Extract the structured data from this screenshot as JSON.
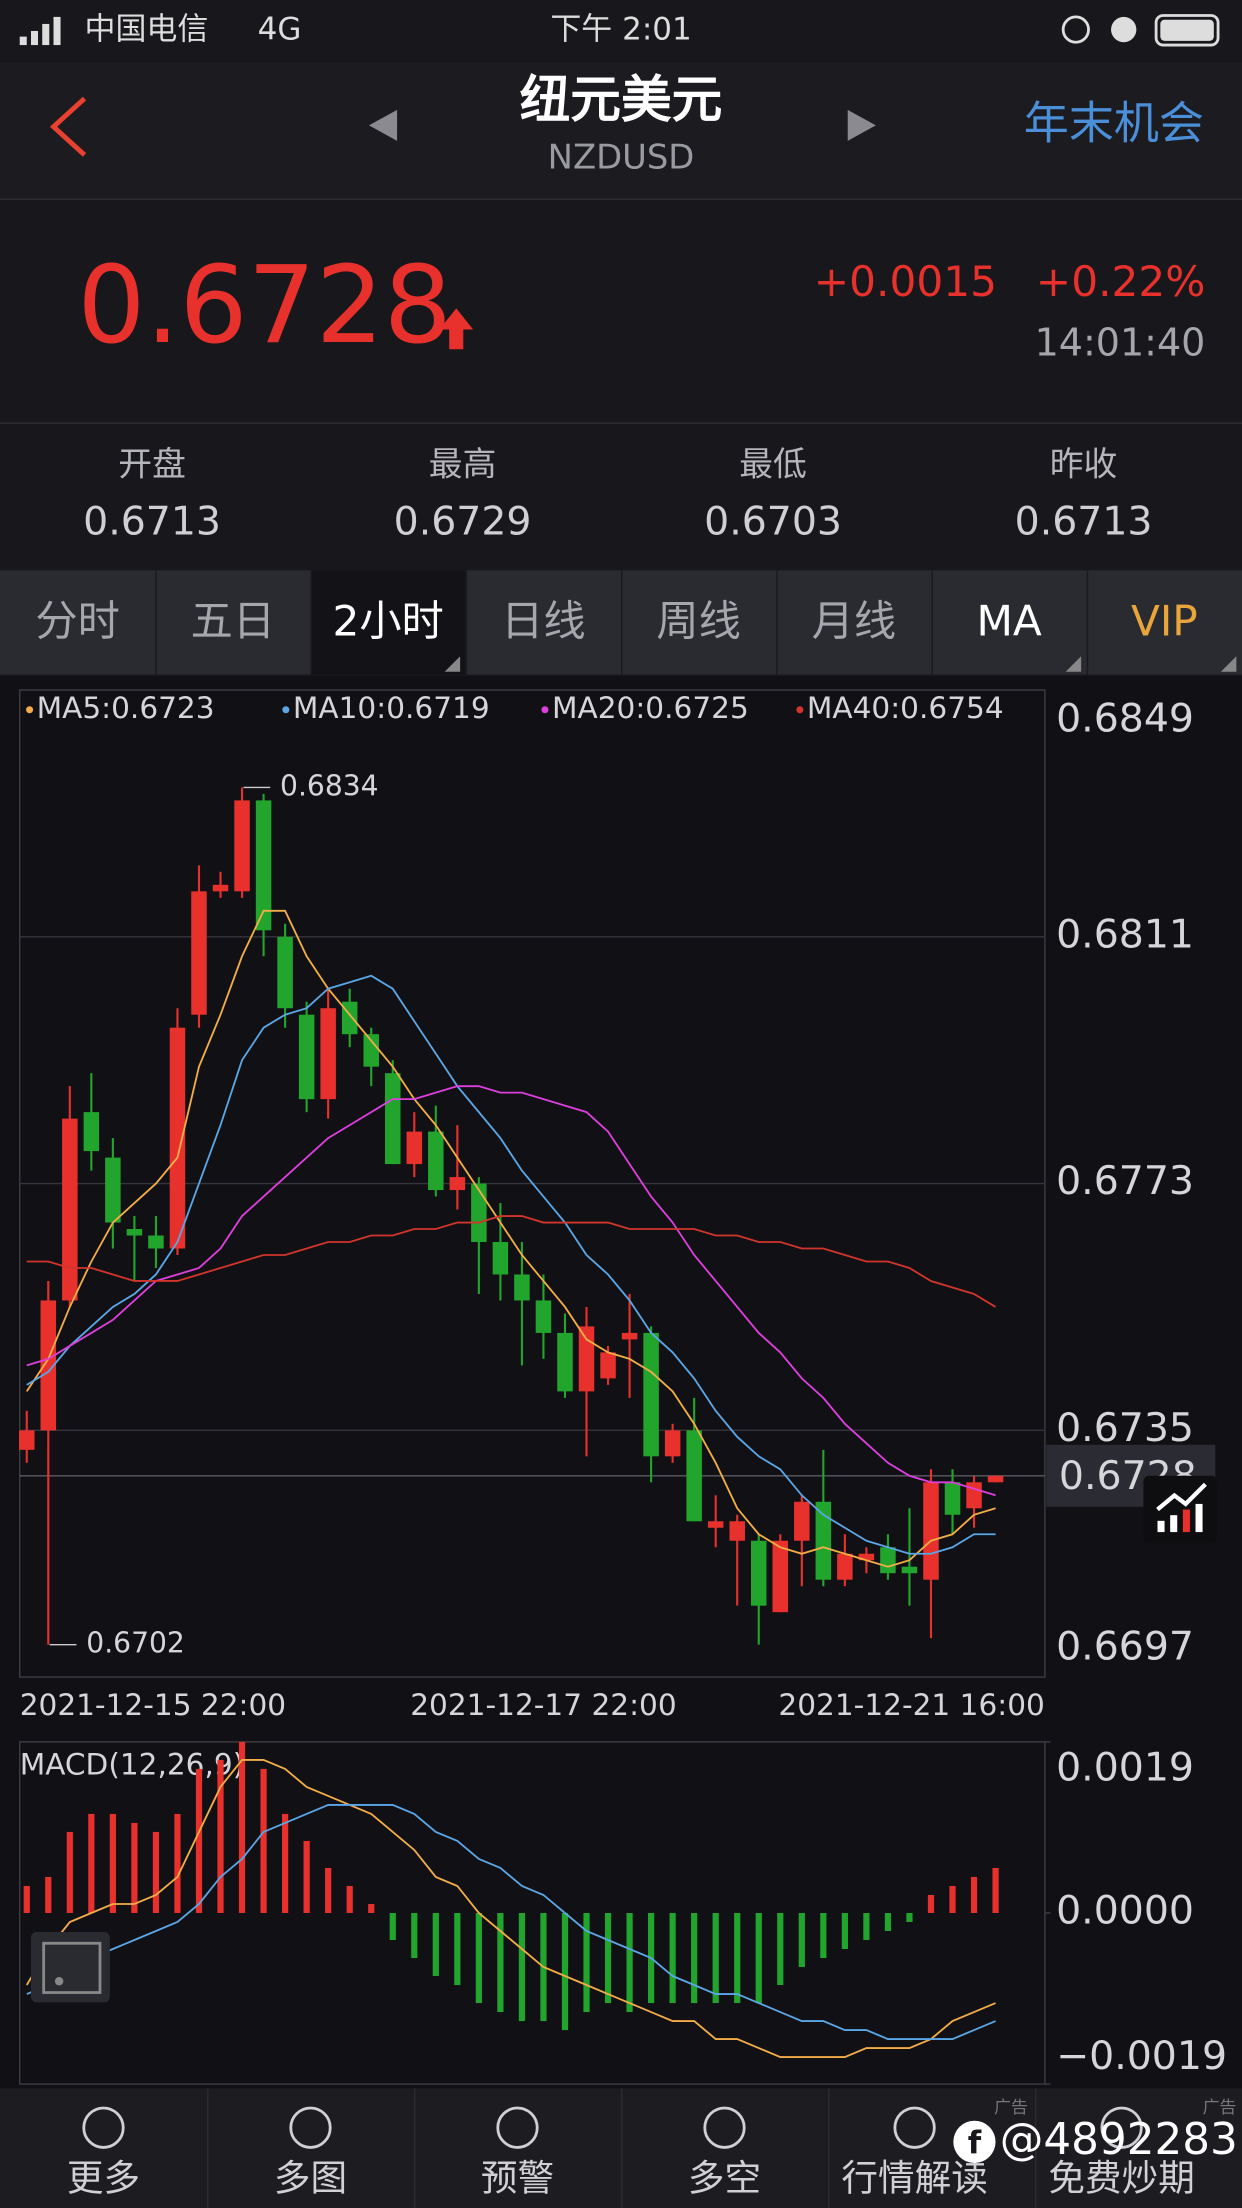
{
  "status": {
    "carrier": "中国电信",
    "network": "4G",
    "time": "下午 2:01"
  },
  "header": {
    "title": "纽元美元",
    "symbol": "NZDUSD",
    "promo": "年末机会"
  },
  "quote": {
    "price": "0.6728",
    "change": "+0.0015",
    "change_pct": "+0.22%",
    "time": "14:01:40"
  },
  "stats": [
    {
      "label": "开盘",
      "value": "0.6713"
    },
    {
      "label": "最高",
      "value": "0.6729"
    },
    {
      "label": "最低",
      "value": "0.6703"
    },
    {
      "label": "昨收",
      "value": "0.6713"
    }
  ],
  "tabs": [
    "分时",
    "五日",
    "2小时",
    "日线",
    "周线",
    "月线",
    "MA",
    "VIP"
  ],
  "chart_data": [
    {
      "type": "candlestick",
      "categories": [
        "2021-12-15 22:00",
        null,
        null,
        null,
        null,
        null,
        null,
        null,
        null,
        null,
        null,
        null,
        null,
        null,
        null,
        null,
        null,
        null,
        null,
        null,
        null,
        null,
        null,
        null,
        "2021-12-17 22:00",
        null,
        null,
        null,
        null,
        null,
        null,
        null,
        null,
        null,
        null,
        null,
        null,
        null,
        null,
        null,
        null,
        null,
        null,
        null,
        null,
        "2021-12-21 16:00"
      ],
      "open": [
        0.6732,
        0.6735,
        0.6755,
        0.6784,
        0.6777,
        0.6766,
        0.6765,
        0.6763,
        0.6799,
        0.6818,
        0.6818,
        0.6832,
        0.6811,
        0.6799,
        0.6786,
        0.6801,
        0.6796,
        0.679,
        0.6776,
        0.6781,
        0.6772,
        0.6773,
        0.6764,
        0.6759,
        0.6755,
        0.675,
        0.6741,
        0.6743,
        0.6749,
        0.675,
        0.6731,
        0.6735,
        0.672,
        0.6718,
        0.6718,
        0.6707,
        0.6718,
        0.6724,
        0.6712,
        0.6715,
        0.6717,
        0.6714,
        0.6712,
        0.6727,
        0.6723,
        0.6727
      ],
      "high": [
        0.6738,
        0.6758,
        0.6788,
        0.679,
        0.678,
        0.6768,
        0.6768,
        0.68,
        0.6822,
        0.6821,
        0.6834,
        0.6833,
        0.6813,
        0.6801,
        0.6803,
        0.6803,
        0.6797,
        0.6792,
        0.6784,
        0.6785,
        0.6782,
        0.6774,
        0.677,
        0.6764,
        0.6759,
        0.6753,
        0.6754,
        0.6748,
        0.6756,
        0.6751,
        0.6736,
        0.674,
        0.6725,
        0.6722,
        0.6719,
        0.6719,
        0.6725,
        0.6732,
        0.6719,
        0.6717,
        0.6719,
        0.6723,
        0.6729,
        0.6729,
        0.6728,
        0.6728
      ],
      "low": [
        0.673,
        0.6702,
        0.6754,
        0.6775,
        0.6763,
        0.6758,
        0.676,
        0.6762,
        0.6797,
        0.6817,
        0.6817,
        0.6808,
        0.6797,
        0.6784,
        0.6783,
        0.6794,
        0.6788,
        0.6776,
        0.6774,
        0.6771,
        0.6769,
        0.6756,
        0.6755,
        0.6745,
        0.6746,
        0.674,
        0.6731,
        0.6742,
        0.674,
        0.6727,
        0.673,
        0.6721,
        0.6717,
        0.6708,
        0.6702,
        0.6707,
        0.6711,
        0.6711,
        0.6711,
        0.6713,
        0.6712,
        0.6708,
        0.6703,
        0.6719,
        0.672,
        0.6727
      ],
      "close": [
        0.6735,
        0.6755,
        0.6783,
        0.6778,
        0.6767,
        0.6765,
        0.6763,
        0.6797,
        0.6818,
        0.6819,
        0.6832,
        0.6812,
        0.68,
        0.6786,
        0.68,
        0.6796,
        0.6791,
        0.6776,
        0.6781,
        0.6772,
        0.6774,
        0.6764,
        0.6759,
        0.6755,
        0.675,
        0.6741,
        0.6751,
        0.6747,
        0.675,
        0.6731,
        0.6735,
        0.6721,
        0.6721,
        0.6721,
        0.6708,
        0.6718,
        0.6724,
        0.6712,
        0.6716,
        0.6716,
        0.6713,
        0.6713,
        0.6727,
        0.6722,
        0.6727,
        0.6728
      ],
      "up_color": "#e8312c",
      "down_color": "#22a52d",
      "series": [
        {
          "name": "MA5:0.6723",
          "color": "#f3ad48",
          "values": [
            0.6741,
            0.6746,
            0.6754,
            0.6761,
            0.6767,
            0.677,
            0.6773,
            0.6777,
            0.6791,
            0.6799,
            0.6808,
            0.6815,
            0.6815,
            0.6808,
            0.6803,
            0.6799,
            0.6795,
            0.6791,
            0.6786,
            0.6782,
            0.6777,
            0.6772,
            0.6767,
            0.6762,
            0.6758,
            0.6754,
            0.6749,
            0.6747,
            0.6746,
            0.6744,
            0.6741,
            0.6736,
            0.673,
            0.6723,
            0.6719,
            0.6717,
            0.6716,
            0.6717,
            0.6716,
            0.6715,
            0.6714,
            0.6715,
            0.6718,
            0.6719,
            0.6722,
            0.6723
          ]
        },
        {
          "name": "MA10:0.6719",
          "color": "#5ba6e6",
          "values": [
            0.6742,
            0.6744,
            0.6748,
            0.6751,
            0.6754,
            0.6756,
            0.6759,
            0.6764,
            0.6773,
            0.6782,
            0.6792,
            0.6797,
            0.6799,
            0.68,
            0.6803,
            0.6804,
            0.6805,
            0.6803,
            0.6798,
            0.6793,
            0.6788,
            0.6784,
            0.678,
            0.6775,
            0.6771,
            0.6767,
            0.6762,
            0.6759,
            0.6755,
            0.675,
            0.6747,
            0.6743,
            0.6738,
            0.6734,
            0.6731,
            0.6729,
            0.6725,
            0.6722,
            0.672,
            0.6718,
            0.6717,
            0.6716,
            0.6716,
            0.6717,
            0.6719,
            0.6719
          ]
        },
        {
          "name": "MA20:0.6725",
          "color": "#dd3fdd",
          "values": [
            0.6745,
            0.6746,
            0.6748,
            0.675,
            0.6752,
            0.6755,
            0.6758,
            0.6759,
            0.676,
            0.6763,
            0.6768,
            0.6771,
            0.6774,
            0.6777,
            0.678,
            0.6782,
            0.6784,
            0.6786,
            0.6786,
            0.6787,
            0.6788,
            0.6788,
            0.6787,
            0.6787,
            0.6786,
            0.6785,
            0.6784,
            0.6781,
            0.6776,
            0.6771,
            0.6767,
            0.6762,
            0.6758,
            0.6754,
            0.675,
            0.6747,
            0.6743,
            0.674,
            0.6736,
            0.6733,
            0.673,
            0.6728,
            0.6727,
            0.6727,
            0.6726,
            0.6725
          ]
        },
        {
          "name": "MA40:0.6754",
          "color": "#d2352c",
          "values": [
            0.6761,
            0.6761,
            0.676,
            0.676,
            0.6759,
            0.6758,
            0.6758,
            0.6758,
            0.6759,
            0.676,
            0.6761,
            0.6762,
            0.6762,
            0.6763,
            0.6764,
            0.6764,
            0.6765,
            0.6765,
            0.6766,
            0.6766,
            0.6767,
            0.6767,
            0.6768,
            0.6768,
            0.6767,
            0.6767,
            0.6767,
            0.6767,
            0.6766,
            0.6766,
            0.6766,
            0.6766,
            0.6765,
            0.6765,
            0.6764,
            0.6764,
            0.6763,
            0.6763,
            0.6762,
            0.6761,
            0.6761,
            0.676,
            0.6758,
            0.6757,
            0.6756,
            0.6754
          ]
        }
      ],
      "ylim": [
        0.6697,
        0.6849
      ],
      "yticks": [
        0.6849,
        0.6811,
        0.6773,
        0.6735,
        0.6697
      ],
      "grid": true,
      "last_price": 0.6728,
      "annotations": [
        {
          "index": 10,
          "value": 0.6834
        },
        {
          "index": 1,
          "value": 0.6702
        }
      ]
    },
    {
      "type": "macd",
      "title": "MACD(12,26,9)",
      "values": [
        0.0003,
        0.0004,
        0.0009,
        0.0011,
        0.0011,
        0.001,
        0.0009,
        0.0011,
        0.0016,
        0.0017,
        0.0019,
        0.0016,
        0.0011,
        0.0008,
        0.0005,
        0.0003,
        0.0001,
        -0.0003,
        -0.0005,
        -0.0007,
        -0.0008,
        -0.001,
        -0.0011,
        -0.0012,
        -0.0012,
        -0.0013,
        -0.0011,
        -0.001,
        -0.0011,
        -0.001,
        -0.001,
        -0.001,
        -0.001,
        -0.001,
        -0.001,
        -0.0008,
        -0.0006,
        -0.0005,
        -0.0004,
        -0.0003,
        -0.0002,
        -0.0001,
        0.0002,
        0.0003,
        0.0004,
        0.0005
      ],
      "up_color": "#e8312c",
      "down_color": "#22a52d",
      "series": [
        {
          "color": "#f3ad48",
          "values": [
            -0.0008,
            -0.0004,
            -0.0001,
            0,
            0.0001,
            0.0001,
            0.0002,
            0.0004,
            0.0009,
            0.0014,
            0.0017,
            0.0017,
            0.0016,
            0.0014,
            0.0013,
            0.0012,
            0.0011,
            0.0009,
            0.0007,
            0.0004,
            0.0003,
            0,
            -0.0002,
            -0.0004,
            -0.0006,
            -0.0007,
            -0.0008,
            -0.0009,
            -0.001,
            -0.0011,
            -0.0012,
            -0.0012,
            -0.0014,
            -0.0014,
            -0.0015,
            -0.0016,
            -0.0016,
            -0.0016,
            -0.0016,
            -0.0015,
            -0.0015,
            -0.0015,
            -0.0014,
            -0.0012,
            -0.0011,
            -0.001
          ]
        },
        {
          "color": "#5ba6e6",
          "values": [
            -0.0009,
            -0.0008,
            -0.0006,
            -0.0005,
            -0.0004,
            -0.0003,
            -0.0002,
            -0.0001,
            0.0001,
            0.0004,
            0.0006,
            0.0009,
            0.001,
            0.0011,
            0.0012,
            0.0012,
            0.0012,
            0.0012,
            0.0011,
            0.0009,
            0.0008,
            0.0006,
            0.0005,
            0.0003,
            0.0002,
            0,
            -0.0002,
            -0.0003,
            -0.0004,
            -0.0005,
            -0.0007,
            -0.0008,
            -0.0009,
            -0.0009,
            -0.001,
            -0.0011,
            -0.0012,
            -0.0012,
            -0.0013,
            -0.0013,
            -0.0014,
            -0.0014,
            -0.0014,
            -0.0014,
            -0.0013,
            -0.0012
          ]
        }
      ],
      "ylim": [
        -0.0019,
        0.0019
      ],
      "yticks": [
        0.0019,
        {
          "value": 0,
          "label": "0.0000"
        },
        {
          "value": -0.0019,
          "label": "−0.0019"
        }
      ]
    }
  ],
  "nav": [
    "更多",
    "多图",
    "预警",
    "多空",
    "行情解读",
    "免费炒期"
  ],
  "ad_label": "广告",
  "watermark": "@4892283"
}
